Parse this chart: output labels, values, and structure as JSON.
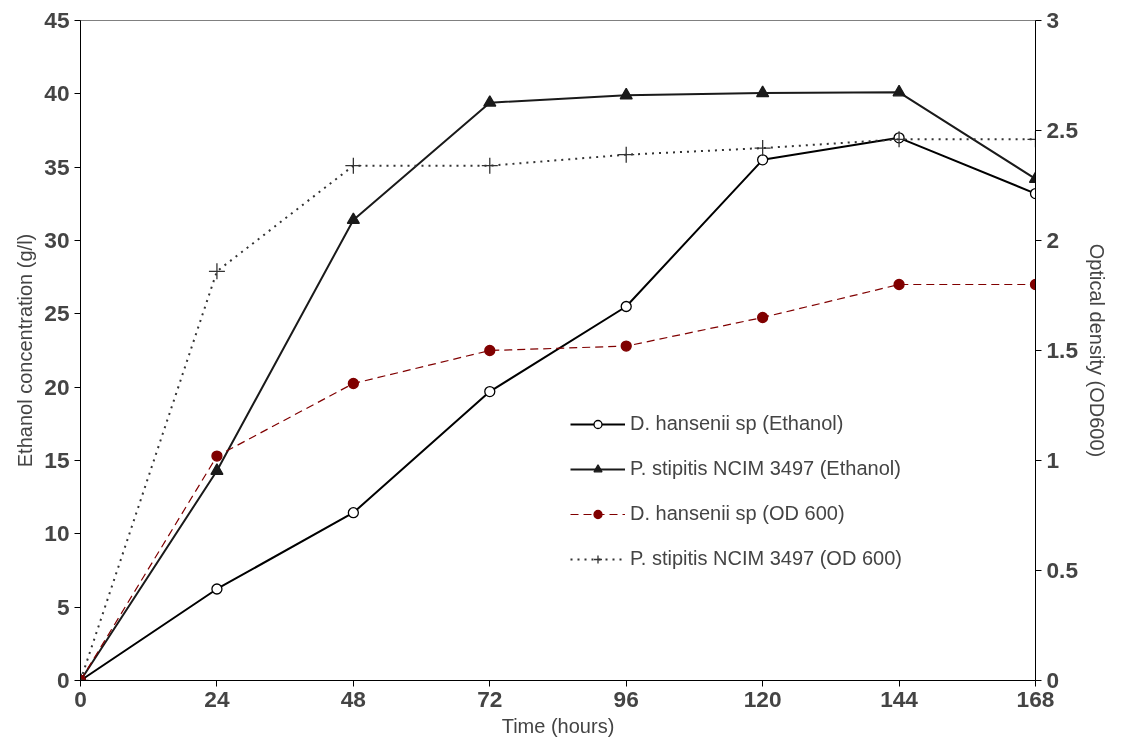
{
  "chart_data": {
    "type": "line",
    "xlabel": "Time (hours)",
    "ylabel": "Ethanol concentration (g/l)",
    "y2label": "Optical density (OD600)",
    "x": [
      0,
      24,
      48,
      72,
      96,
      120,
      144,
      168
    ],
    "xlim": [
      0,
      168
    ],
    "xticks": [
      0,
      24,
      48,
      72,
      96,
      120,
      144,
      168
    ],
    "ylim": [
      0,
      45
    ],
    "yticks": [
      0,
      5,
      10,
      15,
      20,
      25,
      30,
      35,
      40,
      45
    ],
    "y2lim": [
      0,
      3
    ],
    "y2ticks": [
      0,
      0.5,
      1,
      1.5,
      2,
      2.5,
      3
    ],
    "grid": false,
    "legend": "right",
    "series": [
      {
        "name": "D. hansenii sp (Ethanol)",
        "color": "#000000",
        "marker": "circle",
        "line_style": "solid",
        "values": [
          0,
          6.24,
          11.44,
          19.7,
          25.5,
          35.5,
          37.0,
          33.2
        ]
      },
      {
        "name": "P. stipitis NCIM 3497 (Ethanol)",
        "color": "#1a1a1a",
        "marker": "triangle",
        "line_style": "solid",
        "values": [
          0,
          14.3,
          31.4,
          39.4,
          39.9,
          40.05,
          40.1,
          34.2
        ]
      },
      {
        "name": "D. hansenii sp (OD 600)",
        "color": "#800000",
        "marker": "circle",
        "line_style": "dashed",
        "axis": "y2",
        "values": [
          0,
          1.02,
          1.35,
          1.5,
          1.52,
          1.65,
          1.8,
          1.8
        ]
      },
      {
        "name": "P. stipitis NCIM 3497 (OD 600)",
        "color": "#333333",
        "marker": "cross",
        "line_style": "dotted",
        "axis": "y2",
        "values": [
          0,
          1.86,
          2.34,
          2.34,
          2.39,
          2.42,
          2.46,
          2.46
        ]
      }
    ]
  }
}
